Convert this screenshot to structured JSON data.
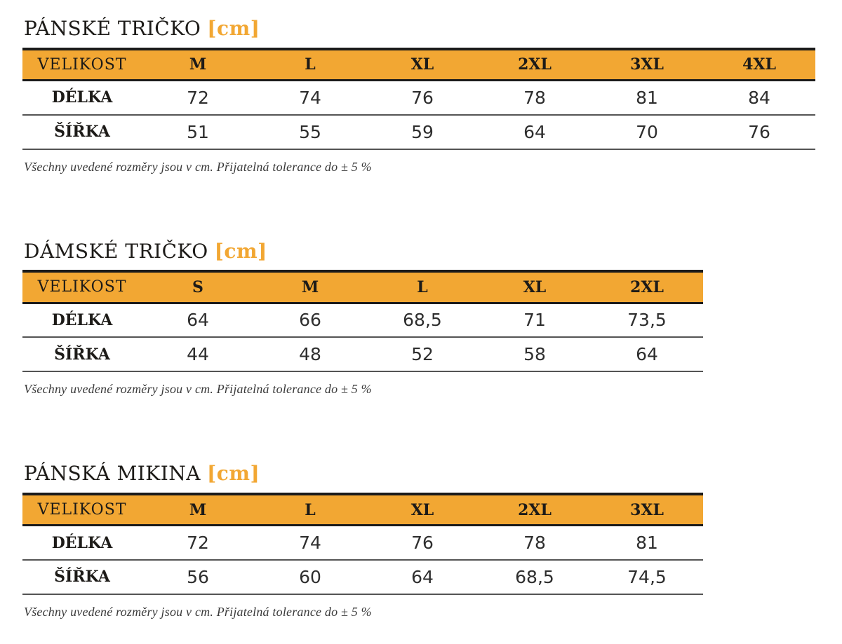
{
  "page": {
    "background_color": "#ffffff",
    "accent_color": "#F2A733",
    "text_color": "#1d1b18"
  },
  "tables": [
    {
      "title": "PÁNSKÉ TRIČKO",
      "unit_label": "[cm]",
      "header_label": "VELIKOST",
      "sizes": [
        "M",
        "L",
        "XL",
        "2XL",
        "3XL",
        "4XL"
      ],
      "rows": [
        {
          "label": "DÉLKA",
          "values": [
            "72",
            "74",
            "76",
            "78",
            "81",
            "84"
          ]
        },
        {
          "label": "ŠÍŘKA",
          "values": [
            "51",
            "55",
            "59",
            "64",
            "70",
            "76"
          ]
        }
      ],
      "note": "Všechny uvedené rozměry jsou v cm. Přijatelná tolerance do ± 5 %"
    },
    {
      "title": "DÁMSKÉ TRIČKO",
      "unit_label": "[cm]",
      "header_label": "VELIKOST",
      "sizes": [
        "S",
        "M",
        "L",
        "XL",
        "2XL"
      ],
      "rows": [
        {
          "label": "DÉLKA",
          "values": [
            "64",
            "66",
            "68,5",
            "71",
            "73,5"
          ]
        },
        {
          "label": "ŠÍŘKA",
          "values": [
            "44",
            "48",
            "52",
            "58",
            "64"
          ]
        }
      ],
      "note": "Všechny uvedené rozměry jsou v cm. Přijatelná tolerance do ± 5 %"
    },
    {
      "title": "PÁNSKÁ MIKINA",
      "unit_label": "[cm]",
      "header_label": "VELIKOST",
      "sizes": [
        "M",
        "L",
        "XL",
        "2XL",
        "3XL"
      ],
      "rows": [
        {
          "label": "DÉLKA",
          "values": [
            "72",
            "74",
            "76",
            "78",
            "81"
          ]
        },
        {
          "label": "ŠÍŘKA",
          "values": [
            "56",
            "60",
            "64",
            "68,5",
            "74,5"
          ]
        }
      ],
      "note": "Všechny uvedené rozměry jsou v cm. Přijatelná tolerance do ± 5 %"
    }
  ]
}
